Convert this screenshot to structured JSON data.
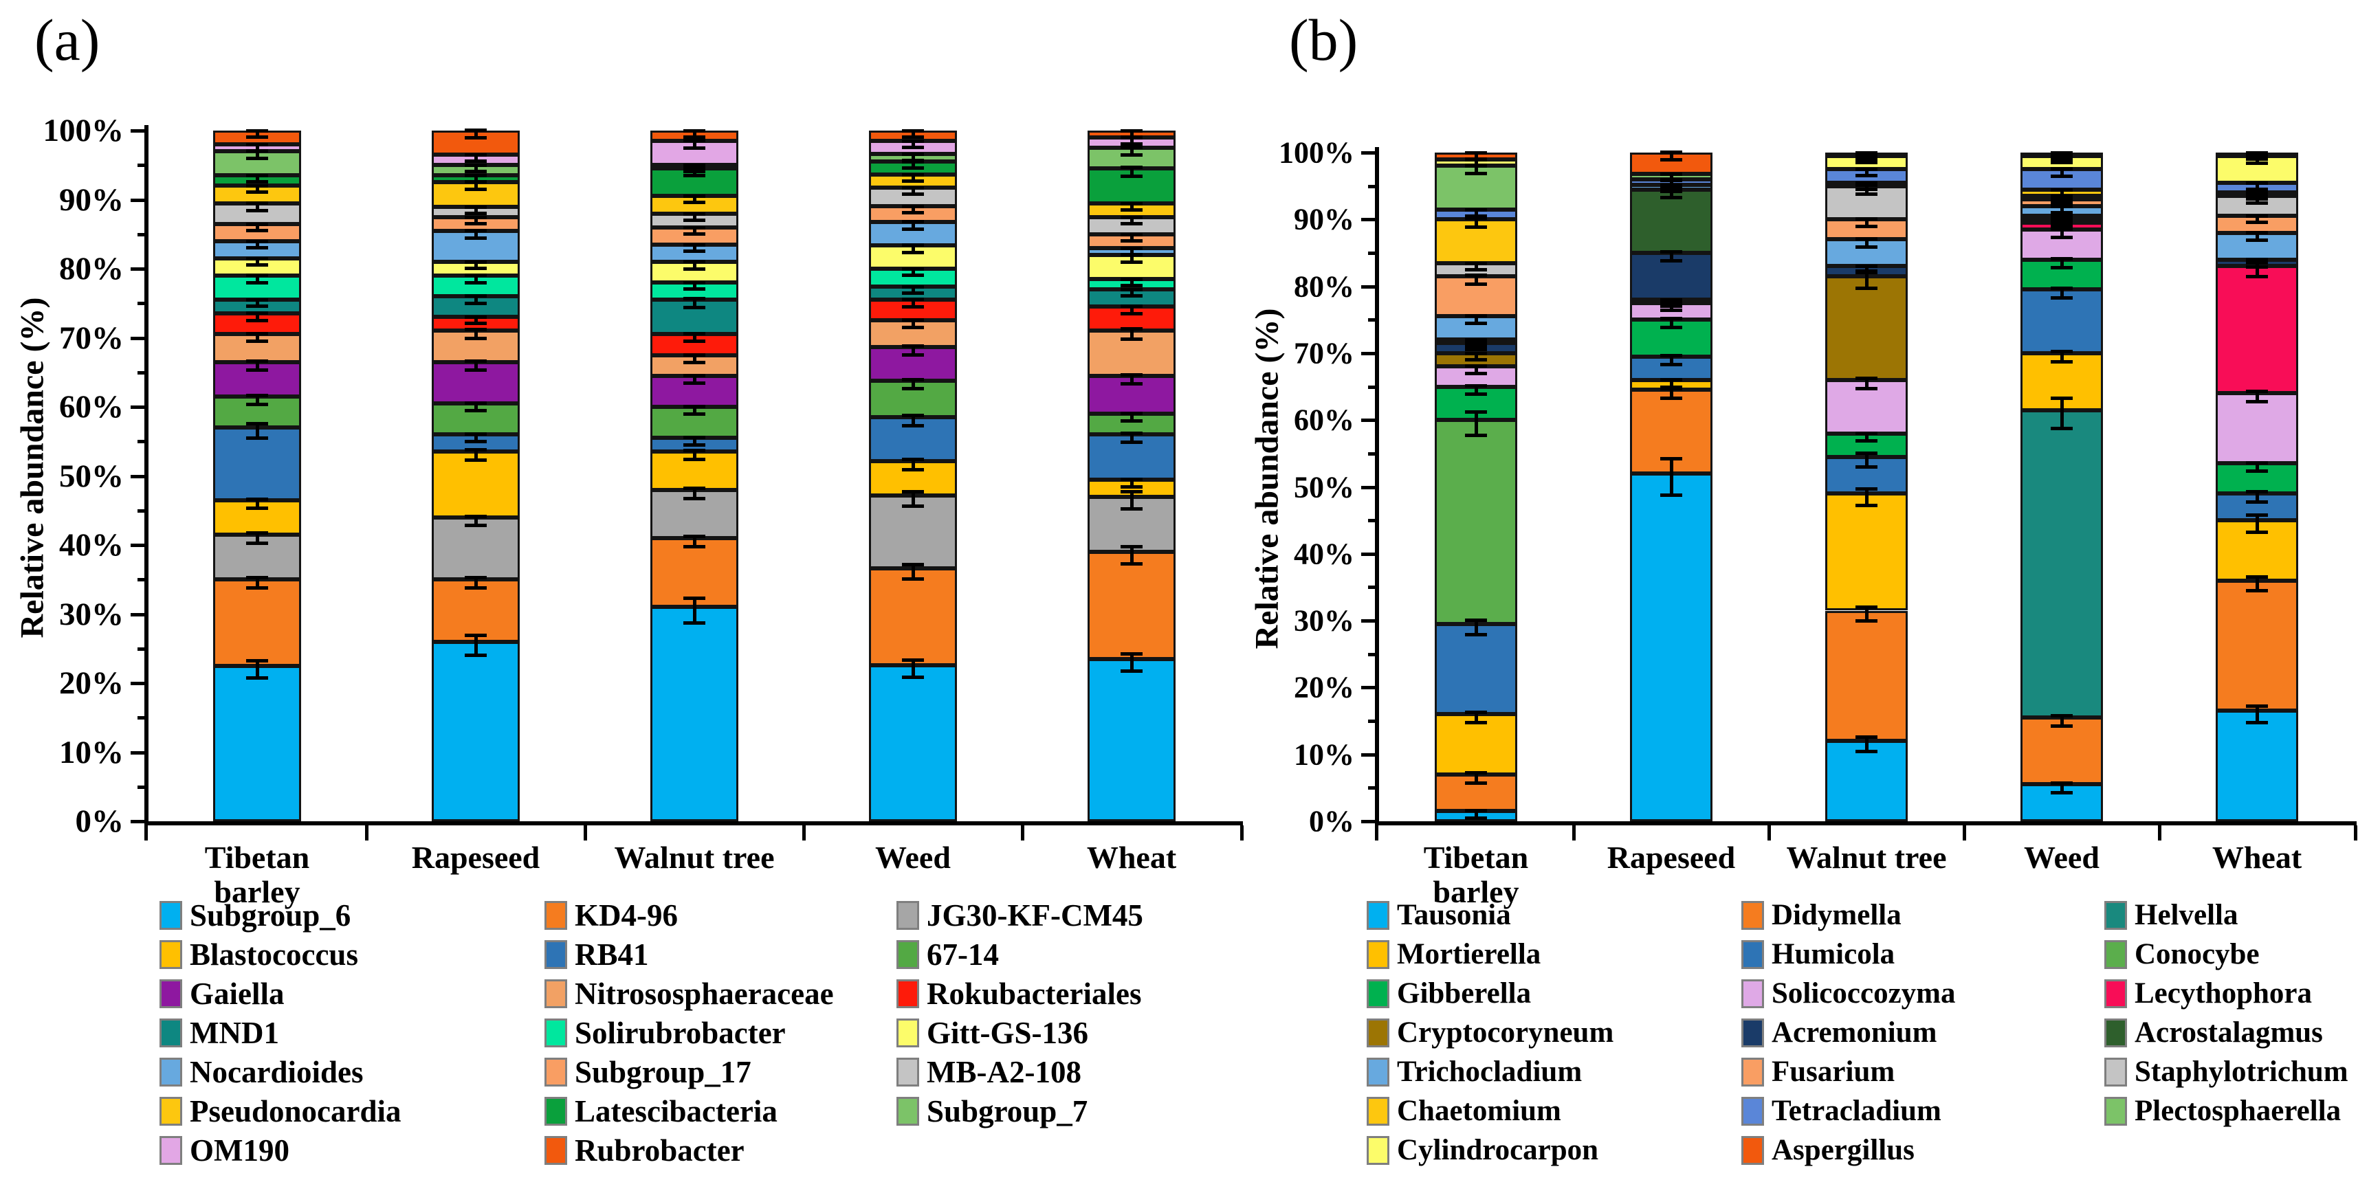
{
  "panels": [
    {
      "label": "(a)",
      "ylabel": "Relative abundance (%)",
      "yticks": [
        "0%",
        "10%",
        "20%",
        "30%",
        "40%",
        "50%",
        "60%",
        "70%",
        "80%",
        "90%",
        "100%"
      ]
    },
    {
      "label": "(b)",
      "ylabel": "Relative abundance (%)",
      "yticks": [
        "0%",
        "10%",
        "20%",
        "30%",
        "40%",
        "50%",
        "60%",
        "70%",
        "80%",
        "90%",
        "100%"
      ]
    }
  ],
  "chart_data": [
    {
      "type": "bar",
      "subtype": "stacked-percent",
      "title": "",
      "xlabel": "",
      "ylabel": "Relative abundance (%)",
      "ylim": [
        0,
        100
      ],
      "ytick_step": 10,
      "grid": false,
      "error_bars": true,
      "legend_position": "bottom",
      "categories": [
        "Tibetan barley",
        "Rapeseed",
        "Walnut tree",
        "Weed",
        "Wheat"
      ],
      "series": [
        {
          "name": "Subgroup_6",
          "color": "#00B0F0",
          "values": [
            22.5,
            26.0,
            31.0,
            22.6,
            23.5
          ],
          "err": [
            1.0,
            1.2,
            1.5,
            1.0,
            1.0
          ]
        },
        {
          "name": "KD4-96",
          "color": "#F57C1F",
          "values": [
            12.5,
            9.0,
            10.0,
            14.0,
            15.5
          ],
          "err": [
            0.5,
            0.5,
            0.5,
            0.8,
            1.0
          ]
        },
        {
          "name": "JG30-KF-CM45",
          "color": "#A6A6A6",
          "values": [
            6.5,
            9.0,
            7.0,
            10.6,
            8.0
          ],
          "err": [
            0.5,
            0.4,
            0.5,
            0.8,
            1.0
          ]
        },
        {
          "name": "Blastococcus",
          "color": "#FFC000",
          "values": [
            5.0,
            9.5,
            5.5,
            4.9,
            2.5
          ],
          "err": [
            0.4,
            0.5,
            0.4,
            0.5,
            0.3
          ]
        },
        {
          "name": "RB41",
          "color": "#2E74B5",
          "values": [
            10.5,
            2.5,
            2.0,
            6.4,
            6.5
          ],
          "err": [
            0.8,
            0.3,
            0.3,
            0.5,
            0.4
          ]
        },
        {
          "name": "67-14",
          "color": "#53A944",
          "values": [
            4.5,
            4.5,
            4.5,
            5.3,
            3.0
          ],
          "err": [
            0.4,
            0.3,
            0.3,
            0.4,
            0.3
          ]
        },
        {
          "name": "Gaiella",
          "color": "#8E18A0",
          "values": [
            5.0,
            6.0,
            4.5,
            4.9,
            5.5
          ],
          "err": [
            0.4,
            0.4,
            0.3,
            0.4,
            0.4
          ]
        },
        {
          "name": "Nitrososphaeraceae",
          "color": "#F2A164",
          "values": [
            4.0,
            4.5,
            3.0,
            3.8,
            6.5
          ],
          "err": [
            0.3,
            0.4,
            0.3,
            0.3,
            0.5
          ]
        },
        {
          "name": "Rokubacteriales",
          "color": "#FE1B0A",
          "values": [
            3.0,
            2.0,
            3.0,
            3.0,
            3.5
          ],
          "err": [
            0.3,
            0.2,
            0.3,
            0.3,
            0.3
          ]
        },
        {
          "name": "MND1",
          "color": "#0E8781",
          "values": [
            2.0,
            3.0,
            5.0,
            1.9,
            2.5
          ],
          "err": [
            0.2,
            0.3,
            0.4,
            0.2,
            0.2
          ]
        },
        {
          "name": "Solirubrobacter",
          "color": "#00E79E",
          "values": [
            3.5,
            3.0,
            2.5,
            2.6,
            1.5
          ],
          "err": [
            0.3,
            0.3,
            0.2,
            0.2,
            0.2
          ]
        },
        {
          "name": "Gitt-GS-136",
          "color": "#FCFC6A",
          "values": [
            2.5,
            2.0,
            3.0,
            3.4,
            3.5
          ],
          "err": [
            0.2,
            0.2,
            0.3,
            0.3,
            0.3
          ]
        },
        {
          "name": "Nocardioides",
          "color": "#67A9DF",
          "values": [
            2.5,
            4.5,
            2.5,
            3.4,
            1.0
          ],
          "err": [
            0.2,
            0.3,
            0.2,
            0.3,
            0.2
          ]
        },
        {
          "name": "Subgroup_17",
          "color": "#F99E63",
          "values": [
            2.5,
            2.0,
            2.5,
            2.3,
            2.0
          ],
          "err": [
            0.2,
            0.2,
            0.2,
            0.2,
            0.2
          ]
        },
        {
          "name": "MB-A2-108",
          "color": "#C4C4C4",
          "values": [
            3.0,
            1.5,
            2.0,
            2.6,
            2.5
          ],
          "err": [
            0.3,
            0.2,
            0.2,
            0.2,
            0.2
          ]
        },
        {
          "name": "Pseudonocardia",
          "color": "#FDC70F",
          "values": [
            2.5,
            3.5,
            2.5,
            1.9,
            2.0
          ],
          "err": [
            0.2,
            0.3,
            0.2,
            0.2,
            0.2
          ]
        },
        {
          "name": "Latescibacteria",
          "color": "#0AA03C",
          "values": [
            1.5,
            1.0,
            4.0,
            1.9,
            5.0
          ],
          "err": [
            0.2,
            0.1,
            0.3,
            0.2,
            0.4
          ]
        },
        {
          "name": "Subgroup_7",
          "color": "#7CC368",
          "values": [
            3.5,
            1.5,
            0.5,
            1.1,
            3.0
          ],
          "err": [
            0.3,
            0.2,
            0.1,
            0.1,
            0.3
          ]
        },
        {
          "name": "OM190",
          "color": "#E2A7E5",
          "values": [
            1.0,
            1.5,
            3.5,
            1.9,
            1.5
          ],
          "err": [
            0.1,
            0.2,
            0.3,
            0.2,
            0.2
          ]
        },
        {
          "name": "Rubrobacter",
          "color": "#F2590D",
          "values": [
            2.0,
            3.5,
            1.5,
            1.5,
            1.0
          ],
          "err": [
            0.2,
            0.3,
            0.2,
            0.2,
            0.1
          ]
        }
      ]
    },
    {
      "type": "bar",
      "subtype": "stacked-percent",
      "title": "",
      "xlabel": "",
      "ylabel": "Relative abundance (%)",
      "ylim": [
        0,
        100
      ],
      "ytick_step": 10,
      "grid": false,
      "error_bars": true,
      "legend_position": "bottom",
      "categories": [
        "Tibetan barley",
        "Rapeseed",
        "Walnut tree",
        "Weed",
        "Wheat"
      ],
      "series": [
        {
          "name": "Tausonia",
          "color": "#00B0F0",
          "values": [
            1.5,
            52.0,
            12.0,
            5.5,
            16.5
          ],
          "err": [
            0.3,
            2.5,
            0.8,
            0.5,
            1.0
          ]
        },
        {
          "name": "Didymella",
          "color": "#F57C1F",
          "values": [
            5.5,
            12.5,
            19.5,
            10.0,
            19.5
          ],
          "err": [
            0.5,
            0.5,
            0.8,
            0.5,
            0.8
          ]
        },
        {
          "name": "Helvella",
          "color": "#19897E",
          "values": [
            0,
            0,
            0,
            46.0,
            0
          ],
          "err": [
            0,
            0,
            0,
            2.0,
            0
          ]
        },
        {
          "name": "Mortierella",
          "color": "#FFC000",
          "values": [
            9.0,
            1.5,
            17.5,
            8.5,
            9.0
          ],
          "err": [
            0.5,
            0.3,
            1.0,
            0.5,
            1.0
          ]
        },
        {
          "name": "Humicola",
          "color": "#2E74B5",
          "values": [
            13.5,
            3.5,
            5.5,
            9.5,
            4.0
          ],
          "err": [
            0.8,
            0.4,
            0.8,
            0.5,
            0.5
          ]
        },
        {
          "name": "Conocybe",
          "color": "#5BAE4C",
          "values": [
            30.5,
            0,
            0,
            0,
            0
          ],
          "err": [
            1.5,
            0,
            0,
            0,
            0
          ]
        },
        {
          "name": "Gibberella",
          "color": "#00B14F",
          "values": [
            5.0,
            5.5,
            3.5,
            4.5,
            4.5
          ],
          "err": [
            0.4,
            0.4,
            0.3,
            0.4,
            0.4
          ]
        },
        {
          "name": "Solicoccozyma",
          "color": "#DFA9E6",
          "values": [
            3.0,
            2.5,
            8.0,
            4.5,
            10.5
          ],
          "err": [
            0.3,
            0.3,
            0.5,
            0.4,
            0.5
          ]
        },
        {
          "name": "Lecythophora",
          "color": "#F80D57",
          "values": [
            0,
            0,
            0,
            1.0,
            19.0
          ],
          "err": [
            0,
            0,
            0,
            0.2,
            0.8
          ]
        },
        {
          "name": "Cryptocoryneum",
          "color": "#9C7504",
          "values": [
            2.0,
            0.5,
            15.5,
            0.5,
            0
          ],
          "err": [
            0.2,
            0.1,
            1.0,
            0.1,
            0
          ]
        },
        {
          "name": "Acremonium",
          "color": "#1A3B68",
          "values": [
            1.5,
            7.0,
            1.5,
            0.5,
            1.0
          ],
          "err": [
            0.2,
            0.4,
            0.2,
            0.1,
            0.3
          ]
        },
        {
          "name": "Acrostalagmus",
          "color": "#2E5F2C",
          "values": [
            0.5,
            9.5,
            0,
            0,
            0
          ],
          "err": [
            0.1,
            0.5,
            0,
            0,
            0
          ]
        },
        {
          "name": "Trichocladium",
          "color": "#67A9DF",
          "values": [
            3.5,
            0.7,
            4.0,
            1.5,
            4.0
          ],
          "err": [
            0.3,
            0.1,
            0.4,
            0.2,
            0.3
          ]
        },
        {
          "name": "Fusarium",
          "color": "#F99E63",
          "values": [
            6.0,
            0,
            3.0,
            1.0,
            2.5
          ],
          "err": [
            0.4,
            0,
            0.3,
            0.1,
            0.2
          ]
        },
        {
          "name": "Staphylotrichum",
          "color": "#C4C4C4",
          "values": [
            2.0,
            0,
            5.0,
            0.5,
            3.0
          ],
          "err": [
            0.2,
            0,
            0.4,
            0.1,
            0.3
          ]
        },
        {
          "name": "Chaetomium",
          "color": "#FDC70F",
          "values": [
            6.5,
            0,
            0.5,
            1.0,
            0.5
          ],
          "err": [
            0.4,
            0,
            0.1,
            0.1,
            0.1
          ]
        },
        {
          "name": "Tetracladium",
          "color": "#5A86D8",
          "values": [
            1.5,
            0.8,
            2.0,
            3.0,
            1.5
          ],
          "err": [
            0.2,
            0.1,
            0.2,
            0.3,
            0.2
          ]
        },
        {
          "name": "Plectosphaerella",
          "color": "#7CC368",
          "values": [
            6.5,
            0.8,
            0,
            0,
            0
          ],
          "err": [
            0.4,
            0.1,
            0,
            0,
            0
          ]
        },
        {
          "name": "Cylindrocarpon",
          "color": "#FCFC6A",
          "values": [
            1.0,
            0,
            2.0,
            2.0,
            4.0
          ],
          "err": [
            0.1,
            0,
            0.2,
            0.2,
            0.3
          ]
        },
        {
          "name": "Aspergillus",
          "color": "#F2590D",
          "values": [
            1.0,
            3.2,
            0.5,
            0.5,
            0.5
          ],
          "err": [
            0.1,
            0.3,
            0.1,
            0.1,
            0.1
          ]
        }
      ]
    }
  ]
}
